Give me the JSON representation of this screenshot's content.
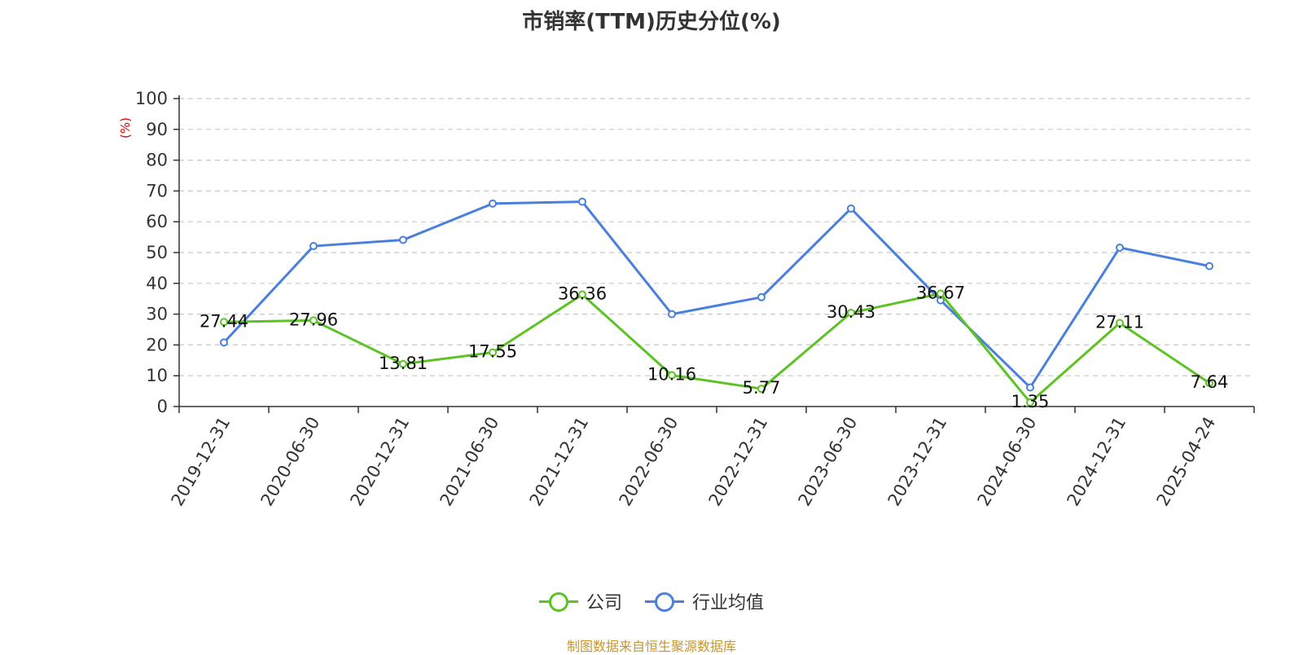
{
  "chart_data": {
    "type": "line",
    "title": "市销率(TTM)历史分位(%)",
    "ylabel": "(%)",
    "ylim": [
      0,
      100
    ],
    "yticks": [
      "0",
      "10",
      "20",
      "30",
      "40",
      "50",
      "60",
      "70",
      "80",
      "90",
      "100"
    ],
    "categories": [
      "2019-12-31",
      "2020-06-30",
      "2020-12-31",
      "2021-06-30",
      "2021-12-31",
      "2022-06-30",
      "2022-12-31",
      "2023-06-30",
      "2023-12-31",
      "2024-06-30",
      "2024-12-31",
      "2025-04-24"
    ],
    "grid": true,
    "legend_position": "bottom",
    "series": [
      {
        "name": "公司",
        "color": "#5cc323",
        "values": [
          27.44,
          27.96,
          13.81,
          17.55,
          36.36,
          10.16,
          5.77,
          30.43,
          36.67,
          1.35,
          27.11,
          7.64
        ],
        "labels": [
          "27.44",
          "27.96",
          "13.81",
          "17.55",
          "36.36",
          "10.16",
          "5.77",
          "30.43",
          "36.67",
          "1.35",
          "27.11",
          "7.64"
        ]
      },
      {
        "name": "行业均值",
        "color": "#4a80db",
        "values": [
          20.8,
          52.1,
          54.1,
          65.9,
          66.5,
          30.0,
          35.5,
          64.3,
          34.5,
          6.2,
          51.6,
          45.6
        ]
      }
    ]
  },
  "source": "制图数据来自恒生聚源数据库"
}
